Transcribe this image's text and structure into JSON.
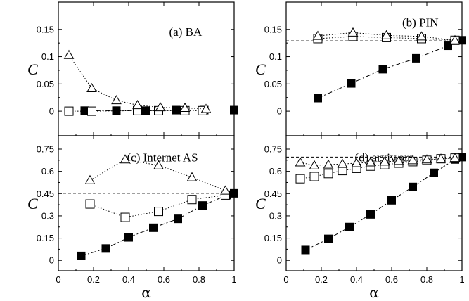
{
  "chart_data": [
    {
      "type": "scatter",
      "label": "(a) BA",
      "ylabel": "C",
      "xlabel": "",
      "xlim": [
        0,
        1
      ],
      "ylim": [
        -0.045,
        0.2
      ],
      "yticks": [
        "0",
        "0.05",
        "0.1",
        "0.15"
      ],
      "ytick_values": [
        0,
        0.05,
        0.1,
        0.15
      ],
      "xticks": [],
      "reference_line": 0.002,
      "series": [
        {
          "marker": "filled-square",
          "linestyle": "dashdot",
          "x": [
            0.15,
            0.33,
            0.5,
            0.67,
            0.83,
            1.0
          ],
          "y": [
            0.001,
            0.001,
            0.001,
            0.002,
            0.002,
            0.002
          ]
        },
        {
          "marker": "open-square",
          "linestyle": "dotted",
          "x": [
            0.06,
            0.19,
            0.45,
            0.57,
            0.72,
            0.82
          ],
          "y": [
            0.0,
            0.0,
            0.001,
            0.001,
            0.001,
            0.001
          ]
        },
        {
          "marker": "open-triangle",
          "linestyle": "dotted",
          "x": [
            0.06,
            0.19,
            0.33,
            0.45,
            0.58,
            0.72,
            0.84
          ],
          "y": [
            0.103,
            0.042,
            0.02,
            0.011,
            0.007,
            0.006,
            0.004
          ]
        }
      ]
    },
    {
      "type": "scatter",
      "label": "(b) PIN",
      "ylabel": "C",
      "xlabel": "",
      "xlim": [
        0,
        1
      ],
      "ylim": [
        -0.045,
        0.2
      ],
      "yticks": [
        "0",
        "0.05",
        "0.1",
        "0.15"
      ],
      "ytick_values": [
        0,
        0.05,
        0.1,
        0.15
      ],
      "xticks": [],
      "reference_line": 0.129,
      "series": [
        {
          "marker": "filled-square",
          "linestyle": "dashdot",
          "x": [
            0.18,
            0.37,
            0.55,
            0.74,
            0.92,
            1.0
          ],
          "y": [
            0.024,
            0.051,
            0.077,
            0.097,
            0.12,
            0.13
          ]
        },
        {
          "marker": "open-square",
          "linestyle": "dotted",
          "x": [
            0.18,
            0.38,
            0.57,
            0.77,
            0.96
          ],
          "y": [
            0.133,
            0.137,
            0.135,
            0.133,
            0.13
          ]
        },
        {
          "marker": "open-triangle",
          "linestyle": "dotted",
          "x": [
            0.18,
            0.38,
            0.57,
            0.77,
            0.96
          ],
          "y": [
            0.138,
            0.144,
            0.139,
            0.137,
            0.13
          ]
        }
      ]
    },
    {
      "type": "scatter",
      "label": "(c) Internet AS",
      "ylabel": "C",
      "xlabel": "α",
      "xlim": [
        0,
        1
      ],
      "ylim": [
        -0.07,
        0.84
      ],
      "yticks": [
        "0",
        "0.15",
        "0.3",
        "0.45",
        "0.6",
        "0.75"
      ],
      "ytick_values": [
        0,
        0.15,
        0.3,
        0.45,
        0.6,
        0.75
      ],
      "xticks": [
        "0",
        "0.2",
        "0.4",
        "0.6",
        "0.8",
        "1"
      ],
      "xtick_values": [
        0,
        0.2,
        0.4,
        0.6,
        0.8,
        1
      ],
      "reference_line": 0.452,
      "series": [
        {
          "marker": "filled-square",
          "linestyle": "dashdot",
          "x": [
            0.13,
            0.27,
            0.4,
            0.54,
            0.68,
            0.82,
            0.96,
            1.0
          ],
          "y": [
            0.03,
            0.08,
            0.155,
            0.22,
            0.28,
            0.37,
            0.44,
            0.452
          ]
        },
        {
          "marker": "open-square",
          "linestyle": "dotted",
          "x": [
            0.18,
            0.38,
            0.57,
            0.76,
            0.95
          ],
          "y": [
            0.38,
            0.29,
            0.33,
            0.41,
            0.44
          ]
        },
        {
          "marker": "open-triangle",
          "linestyle": "dotted",
          "x": [
            0.18,
            0.38,
            0.57,
            0.76,
            0.95
          ],
          "y": [
            0.54,
            0.68,
            0.64,
            0.56,
            0.47
          ]
        }
      ]
    },
    {
      "type": "scatter",
      "label": "(d) arxiv.org",
      "ylabel": "C",
      "xlabel": "α",
      "xlim": [
        0,
        1
      ],
      "ylim": [
        -0.07,
        0.84
      ],
      "yticks": [
        "0",
        "0.15",
        "0.3",
        "0.45",
        "0.6",
        "0.75"
      ],
      "ytick_values": [
        0,
        0.15,
        0.3,
        0.45,
        0.6,
        0.75
      ],
      "xticks": [
        "0",
        "0.2",
        "0.4",
        "0.6",
        "0.8",
        "1"
      ],
      "xtick_values": [
        0,
        0.2,
        0.4,
        0.6,
        0.8,
        1
      ],
      "reference_line": 0.696,
      "series": [
        {
          "marker": "filled-square",
          "linestyle": "dashdot",
          "x": [
            0.11,
            0.24,
            0.36,
            0.48,
            0.6,
            0.72,
            0.84,
            0.96,
            1.0
          ],
          "y": [
            0.07,
            0.145,
            0.225,
            0.31,
            0.405,
            0.495,
            0.59,
            0.68,
            0.696
          ]
        },
        {
          "marker": "open-square",
          "linestyle": "dotted",
          "x": [
            0.08,
            0.16,
            0.24,
            0.32,
            0.4,
            0.48,
            0.56,
            0.64,
            0.72,
            0.8,
            0.88,
            0.96
          ],
          "y": [
            0.55,
            0.565,
            0.585,
            0.605,
            0.62,
            0.635,
            0.645,
            0.655,
            0.665,
            0.675,
            0.685,
            0.69
          ]
        },
        {
          "marker": "open-triangle",
          "linestyle": "dotted",
          "x": [
            0.08,
            0.16,
            0.24,
            0.32,
            0.4,
            0.48,
            0.56,
            0.64,
            0.72,
            0.8,
            0.88,
            0.96
          ],
          "y": [
            0.66,
            0.64,
            0.645,
            0.65,
            0.655,
            0.66,
            0.665,
            0.67,
            0.675,
            0.68,
            0.685,
            0.69
          ]
        }
      ]
    }
  ]
}
